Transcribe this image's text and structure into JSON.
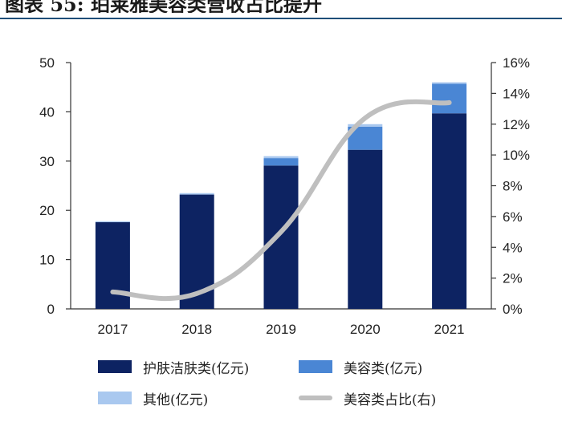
{
  "figure": {
    "title": "图表 55: 珀莱雅美容类营收占比提升"
  },
  "chart_data": {
    "type": "bar",
    "stacked": true,
    "categories": [
      "2017",
      "2018",
      "2019",
      "2020",
      "2021"
    ],
    "series": [
      {
        "name": "护肤洁肤类(亿元)",
        "type": "bar",
        "axis": "left",
        "color": "#0d2362",
        "values": [
          17.6,
          23.2,
          29.1,
          32.3,
          39.7
        ]
      },
      {
        "name": "美容类(亿元)",
        "type": "bar",
        "axis": "left",
        "color": "#4a86d4",
        "values": [
          0.0,
          0.0,
          1.5,
          4.7,
          6.0
        ]
      },
      {
        "name": "其他(亿元)",
        "type": "bar",
        "axis": "left",
        "color": "#a9c8ef",
        "values": [
          0.2,
          0.3,
          0.4,
          0.5,
          0.3
        ]
      },
      {
        "name": "美容类占比(右)",
        "type": "line",
        "axis": "right",
        "color": "#bfbfbf",
        "values": [
          1.1,
          1.0,
          5.0,
          12.4,
          13.4
        ]
      }
    ],
    "ylim_left": [
      0,
      50
    ],
    "yticks_left": [
      "0",
      "10",
      "20",
      "30",
      "40",
      "50"
    ],
    "ylim_right": [
      0,
      16
    ],
    "yticks_right": [
      "0%",
      "2%",
      "4%",
      "6%",
      "8%",
      "10%",
      "12%",
      "14%",
      "16%"
    ],
    "grid": false,
    "legend_position": "bottom"
  }
}
